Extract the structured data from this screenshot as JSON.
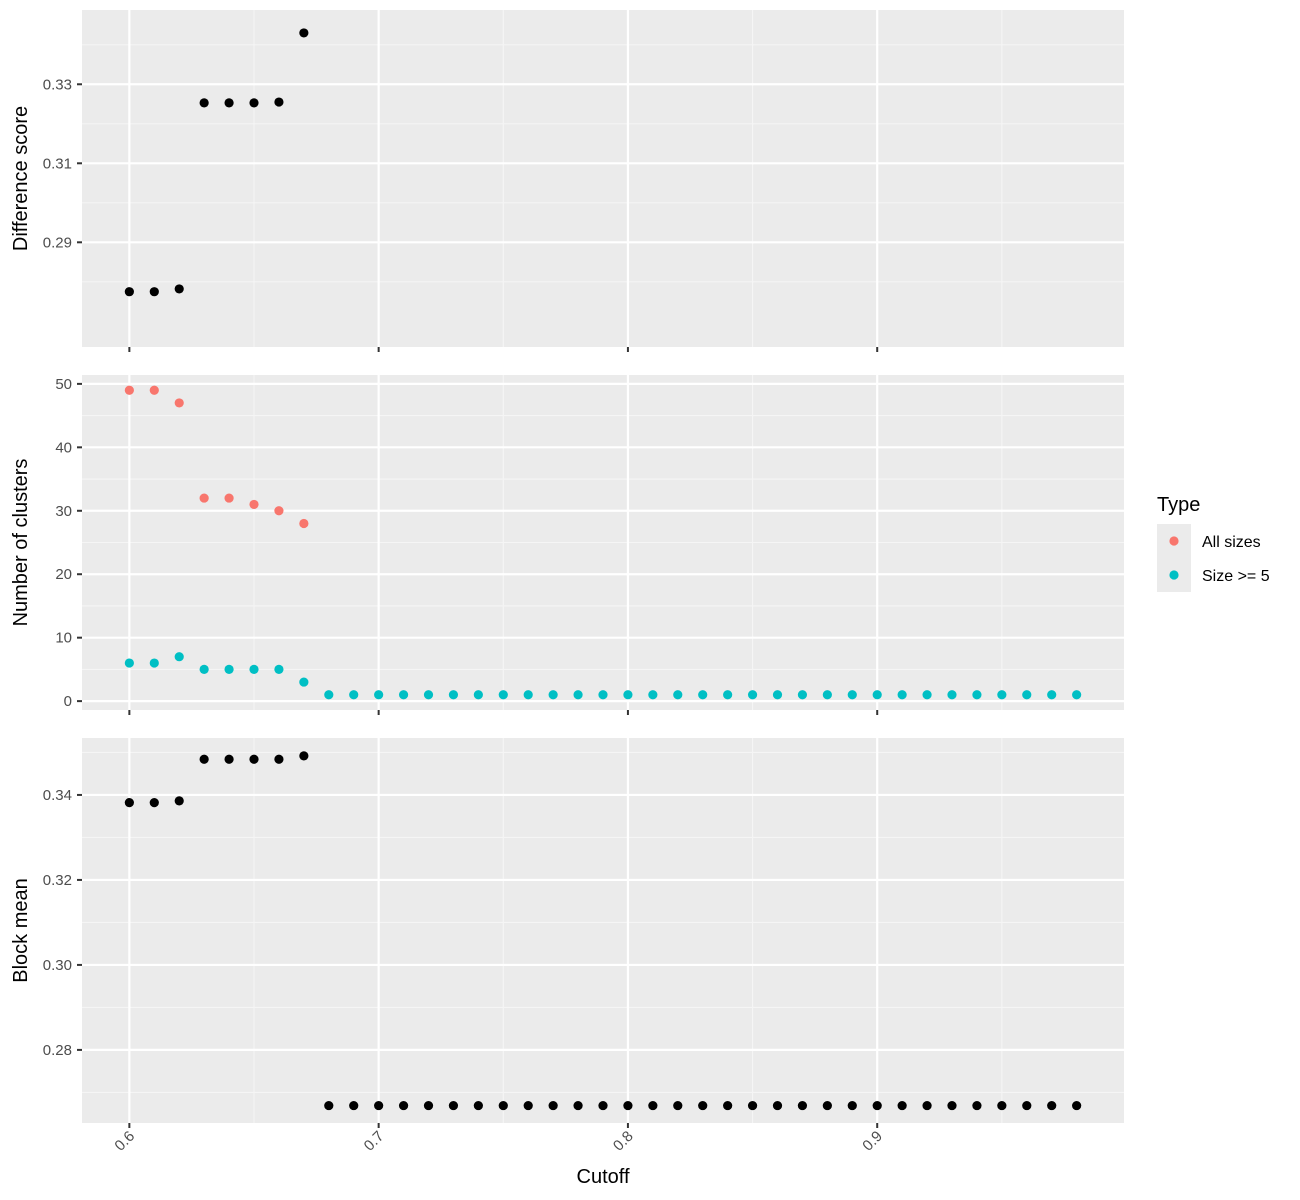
{
  "colors": {
    "panel_bg": "#EBEBEB",
    "grid_major": "#FFFFFF",
    "grid_minor": "#F5F5F5",
    "axis_text": "#4D4D4D",
    "tick": "#333333",
    "point_default": "#000000",
    "series_all_sizes": "#F8766D",
    "series_size_ge_5": "#00BFC4"
  },
  "legend": {
    "title": "Type",
    "items": [
      {
        "label": "All sizes",
        "color": "#F8766D"
      },
      {
        "label": "Size >= 5",
        "color": "#00BFC4"
      }
    ],
    "placement": "right"
  },
  "shared_xaxis": {
    "label": "Cutoff",
    "ticks": [
      0.6,
      0.7,
      0.8,
      0.9
    ],
    "tick_labels": [
      "0.6",
      "0.7",
      "0.8",
      "0.9"
    ],
    "range": [
      0.581,
      0.999
    ],
    "tick_label_rotation": "45deg"
  },
  "chart_data": [
    {
      "type": "scatter",
      "panel": "top",
      "ylabel": "Difference score",
      "xlabel": "",
      "ylim": [
        0.2635,
        0.3488
      ],
      "yticks": [
        0.29,
        0.31,
        0.33
      ],
      "ytick_labels": [
        "0.29",
        "0.31",
        "0.33"
      ],
      "series": [
        {
          "x": [
            0.6,
            0.61,
            0.62,
            0.63,
            0.64,
            0.65,
            0.66,
            0.67
          ],
          "y": [
            0.2775,
            0.2775,
            0.2782,
            0.3253,
            0.3253,
            0.3253,
            0.3255,
            0.343
          ]
        }
      ]
    },
    {
      "type": "scatter",
      "panel": "middle",
      "ylabel": "Number of clusters",
      "xlabel": "",
      "ylim": [
        -1.4,
        51.4
      ],
      "yticks": [
        0,
        10,
        20,
        30,
        40,
        50
      ],
      "ytick_labels": [
        "0",
        "10",
        "20",
        "30",
        "40",
        "50"
      ],
      "series": [
        {
          "name": "All sizes",
          "x": [
            0.6,
            0.61,
            0.62,
            0.63,
            0.64,
            0.65,
            0.66,
            0.67
          ],
          "y": [
            49,
            49,
            47,
            32,
            32,
            31,
            30,
            28
          ]
        },
        {
          "name": "Size >= 5",
          "x": [
            0.6,
            0.61,
            0.62,
            0.63,
            0.64,
            0.65,
            0.66,
            0.67,
            0.68,
            0.69,
            0.7,
            0.71,
            0.72,
            0.73,
            0.74,
            0.75,
            0.76,
            0.77,
            0.78,
            0.79,
            0.8,
            0.81,
            0.82,
            0.83,
            0.84,
            0.85,
            0.86,
            0.87,
            0.88,
            0.89,
            0.9,
            0.91,
            0.92,
            0.93,
            0.94,
            0.95,
            0.96,
            0.97,
            0.98
          ],
          "y": [
            6,
            6,
            7,
            5,
            5,
            5,
            5,
            3,
            1,
            1,
            1,
            1,
            1,
            1,
            1,
            1,
            1,
            1,
            1,
            1,
            1,
            1,
            1,
            1,
            1,
            1,
            1,
            1,
            1,
            1,
            1,
            1,
            1,
            1,
            1,
            1,
            1,
            1,
            1
          ]
        }
      ]
    },
    {
      "type": "scatter",
      "panel": "bottom",
      "ylabel": "Block mean",
      "xlabel": "Cutoff",
      "ylim": [
        0.2628,
        0.3534
      ],
      "yticks": [
        0.28,
        0.3,
        0.32,
        0.34
      ],
      "ytick_labels": [
        "0.28",
        "0.30",
        "0.32",
        "0.34"
      ],
      "series": [
        {
          "x": [
            0.6,
            0.61,
            0.62,
            0.63,
            0.64,
            0.65,
            0.66,
            0.67,
            0.68,
            0.69,
            0.7,
            0.71,
            0.72,
            0.73,
            0.74,
            0.75,
            0.76,
            0.77,
            0.78,
            0.79,
            0.8,
            0.81,
            0.82,
            0.83,
            0.84,
            0.85,
            0.86,
            0.87,
            0.88,
            0.89,
            0.9,
            0.91,
            0.92,
            0.93,
            0.94,
            0.95,
            0.96,
            0.97,
            0.98
          ],
          "y": [
            0.3382,
            0.3382,
            0.3386,
            0.3484,
            0.3484,
            0.3484,
            0.3484,
            0.3492,
            0.2669,
            0.2669,
            0.2669,
            0.2669,
            0.2669,
            0.2669,
            0.2669,
            0.2669,
            0.2669,
            0.2669,
            0.2669,
            0.2669,
            0.2669,
            0.2669,
            0.2669,
            0.2669,
            0.2669,
            0.2669,
            0.2669,
            0.2669,
            0.2669,
            0.2669,
            0.2669,
            0.2669,
            0.2669,
            0.2669,
            0.2669,
            0.2669,
            0.2669,
            0.2669,
            0.2669
          ]
        }
      ]
    }
  ]
}
